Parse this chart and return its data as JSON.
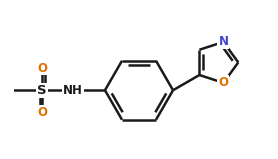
{
  "background_color": "#ffffff",
  "line_color": "#1a1a1a",
  "oxygen_color": "#e07000",
  "nitrogen_color": "#4444cc",
  "line_width": 1.8,
  "fig_width": 2.78,
  "fig_height": 1.59,
  "xlim": [
    -3.5,
    3.5
  ],
  "ylim": [
    -2.2,
    2.2
  ]
}
